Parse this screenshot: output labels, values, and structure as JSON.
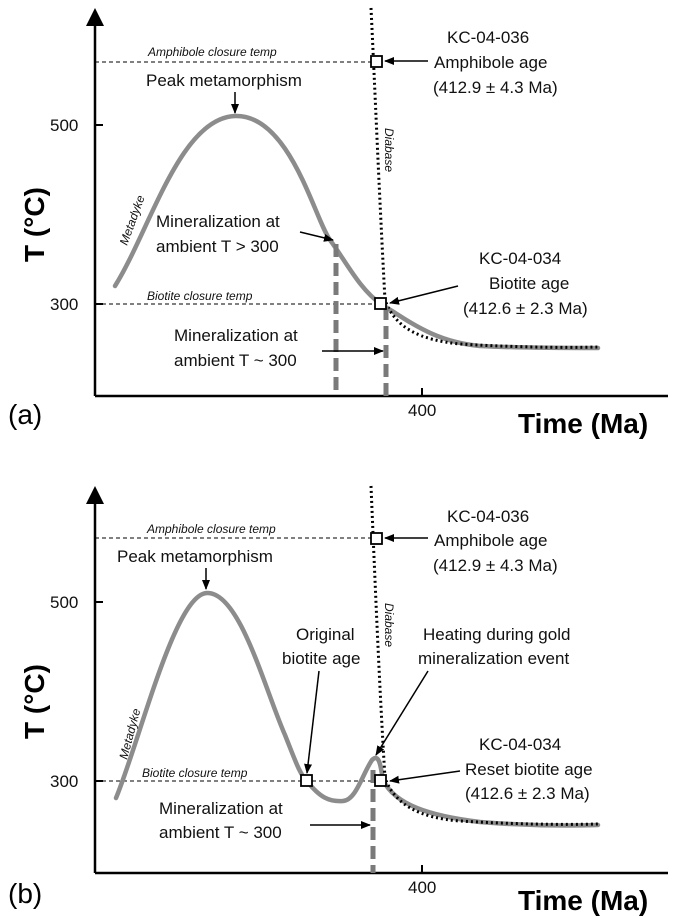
{
  "panels": [
    {
      "letter": "(a)",
      "y_axis_title": "T (°C)",
      "x_axis_title": "Time (Ma)",
      "y_ticks": [
        "500",
        "300"
      ],
      "x_tick": "400",
      "amphibole_line_label": "Amphibole closure temp",
      "biotite_line_label": "Biotite closure temp",
      "metadyke_label": "Metadyke",
      "diabase_label": "Diabase",
      "peak_label": "Peak metamorphism",
      "amph_sample": [
        "KC-04-036",
        "Amphibole age",
        "(412.9 ± 4.3 Ma)"
      ],
      "biot_sample": [
        "KC-04-034",
        "Biotite age",
        "(412.6 ± 2.3 Ma)"
      ],
      "min_gt300": [
        "Mineralization at",
        "ambient T > 300"
      ],
      "min_eq300": [
        "Mineralization at",
        "ambient T ~ 300"
      ]
    },
    {
      "letter": "(b)",
      "y_axis_title": "T (°C)",
      "x_axis_title": "Time (Ma)",
      "y_ticks": [
        "500",
        "300"
      ],
      "x_tick": "400",
      "amphibole_line_label": "Amphibole closure temp",
      "biotite_line_label": "Biotite closure temp",
      "metadyke_label": "Metadyke",
      "diabase_label": "Diabase",
      "peak_label": "Peak metamorphism",
      "original_label": [
        "Original",
        "biotite age"
      ],
      "heating_label": [
        "Heating during gold",
        "mineralization event"
      ],
      "amph_sample": [
        "KC-04-036",
        "Amphibole age",
        "(412.9 ± 4.3 Ma)"
      ],
      "biot_sample": [
        "KC-04-034",
        "Reset biotite age",
        "(412.6 ± 2.3 Ma)"
      ],
      "min_eq300": [
        "Mineralization at",
        "ambient T ~ 300"
      ]
    }
  ],
  "colors": {
    "curve": "#8c8c8c",
    "axis": "#000000",
    "dashed_marker": "#7a7a7a"
  }
}
